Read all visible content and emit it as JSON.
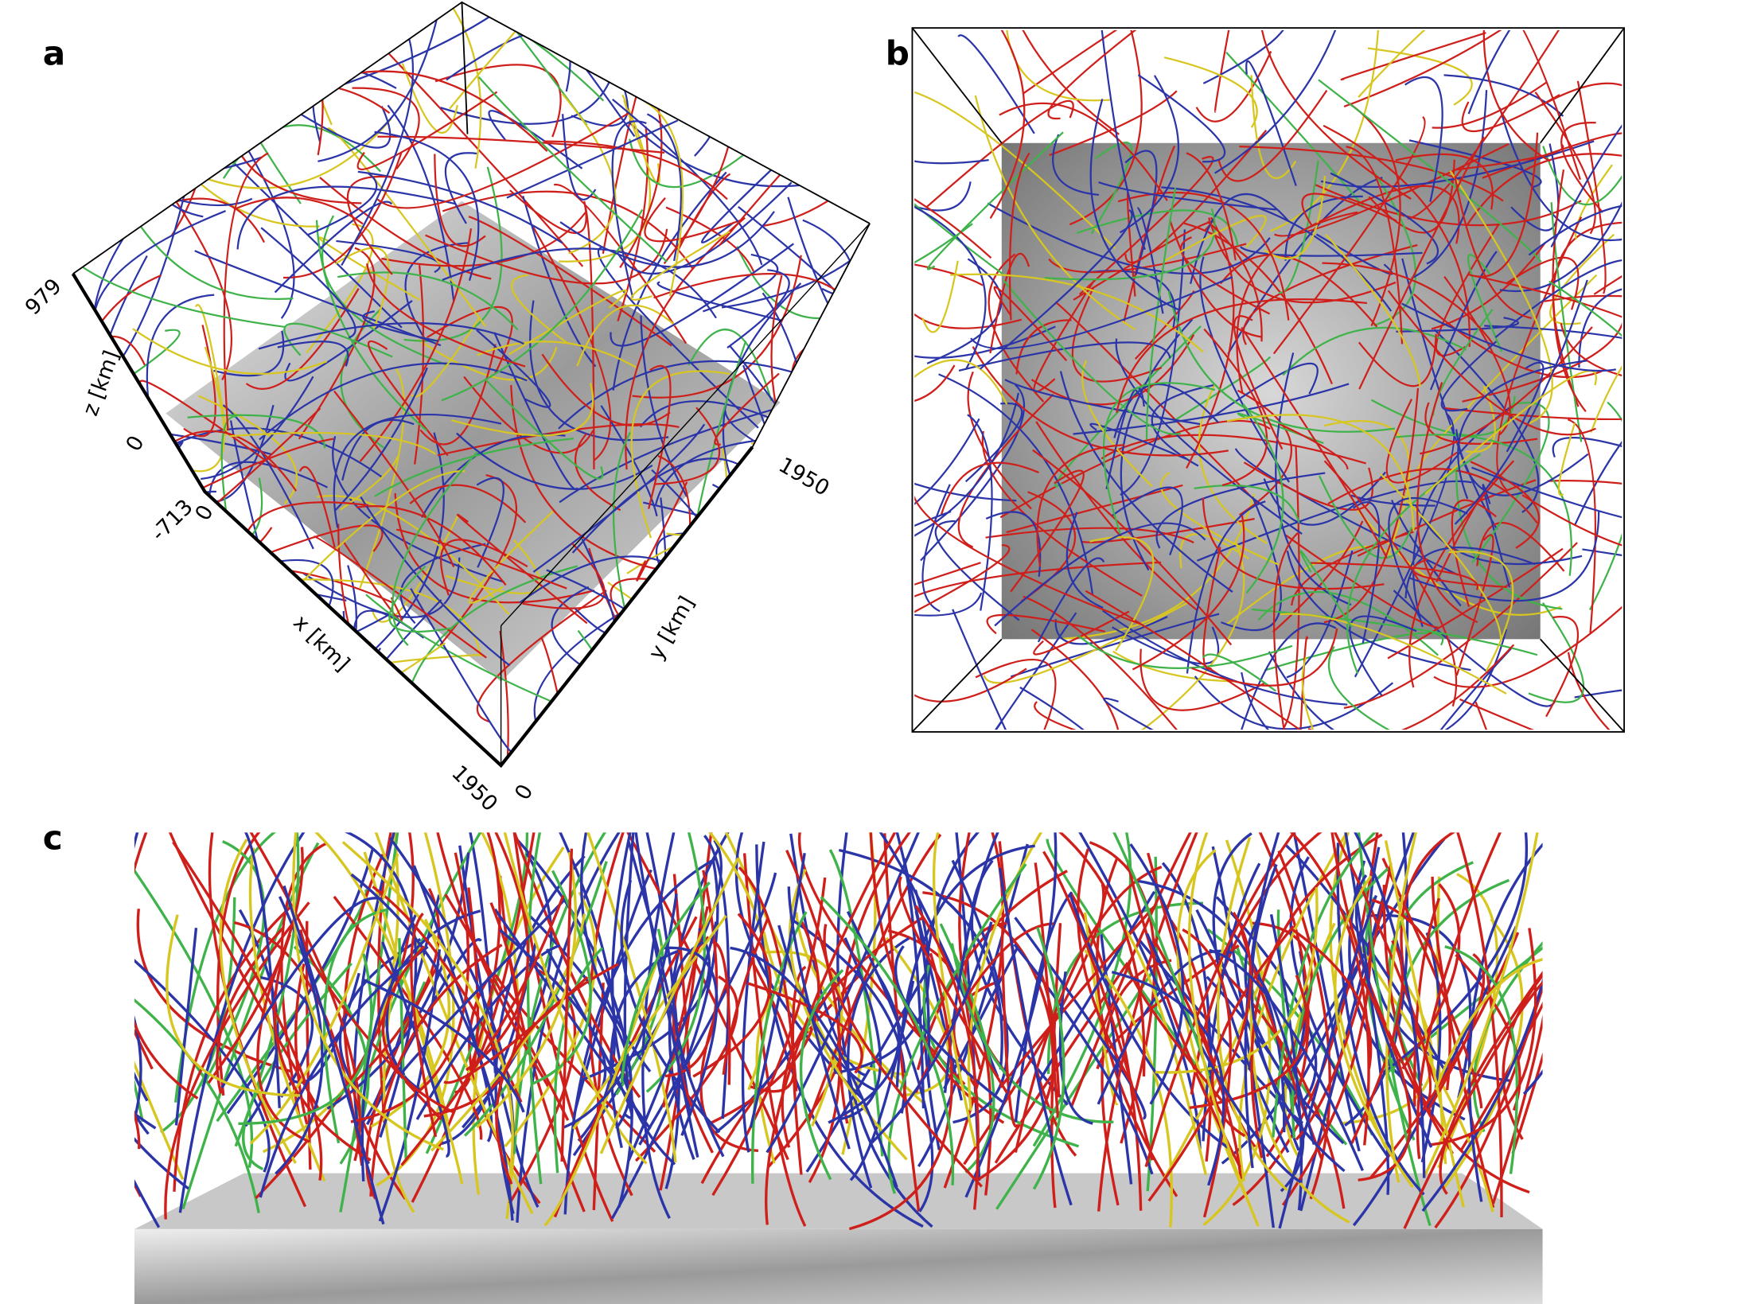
{
  "panels": [
    {
      "label": "a",
      "axis_labels": {
        "z_max": "979",
        "z_title": "z [km]",
        "z_zero": "0",
        "z_min": "-713",
        "x_zero": "0",
        "x_title": "x [km]",
        "x_max": "1950",
        "y_zero": "0",
        "y_title": "y [km]",
        "y_max": "1950"
      }
    },
    {
      "label": "b"
    },
    {
      "label": "c"
    }
  ]
}
